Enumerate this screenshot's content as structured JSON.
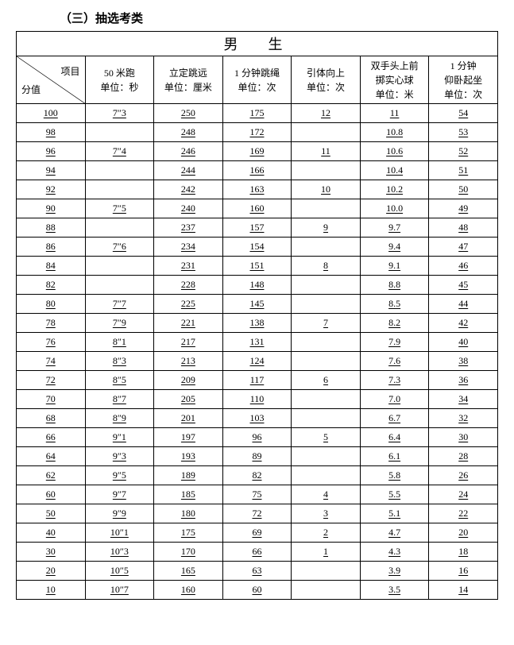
{
  "section_title": "（三）抽选考类",
  "table_title": "男　生",
  "diag_top": "项目",
  "diag_bottom": "分值",
  "columns": [
    {
      "line1": "50 米跑",
      "line2": "单位：秒"
    },
    {
      "line1": "立定跳远",
      "line2": "单位：厘米"
    },
    {
      "line1": "1 分钟跳绳",
      "line2": "单位：次"
    },
    {
      "line1": "引体向上",
      "line2": "单位：次"
    },
    {
      "line1": "双手头上前",
      "line2": "掷实心球",
      "line3": "单位：米"
    },
    {
      "line1": "1 分钟",
      "line2": "仰卧起坐",
      "line3": "单位：次"
    }
  ],
  "rows": [
    {
      "score": "100",
      "c": [
        "7″3",
        "250",
        "175",
        "12",
        "11",
        "54"
      ]
    },
    {
      "score": "98",
      "c": [
        "",
        "248",
        "172",
        "",
        "10.8",
        "53"
      ]
    },
    {
      "score": "96",
      "c": [
        "7″4",
        "246",
        "169",
        "11",
        "10.6",
        "52"
      ]
    },
    {
      "score": "94",
      "c": [
        "",
        "244",
        "166",
        "",
        "10.4",
        "51"
      ]
    },
    {
      "score": "92",
      "c": [
        "",
        "242",
        "163",
        "10",
        "10.2",
        "50"
      ]
    },
    {
      "score": "90",
      "c": [
        "7″5",
        "240",
        "160",
        "",
        "10.0",
        "49"
      ]
    },
    {
      "score": "88",
      "c": [
        "",
        "237",
        "157",
        "9",
        "9.7",
        "48"
      ]
    },
    {
      "score": "86",
      "c": [
        "7″6",
        "234",
        "154",
        "",
        "9.4",
        "47"
      ]
    },
    {
      "score": "84",
      "c": [
        "",
        "231",
        "151",
        "8",
        "9.1",
        "46"
      ]
    },
    {
      "score": "82",
      "c": [
        "",
        "228",
        "148",
        "",
        "8.8",
        "45"
      ]
    },
    {
      "score": "80",
      "c": [
        "7″7",
        "225",
        "145",
        "",
        "8.5",
        "44"
      ]
    },
    {
      "score": "78",
      "c": [
        "7″9",
        "221",
        "138",
        "7",
        "8.2",
        "42"
      ]
    },
    {
      "score": "76",
      "c": [
        "8″1",
        "217",
        "131",
        "",
        "7.9",
        "40"
      ]
    },
    {
      "score": "74",
      "c": [
        "8″3",
        "213",
        "124",
        "",
        "7.6",
        "38"
      ]
    },
    {
      "score": "72",
      "c": [
        "8″5",
        "209",
        "117",
        "6",
        "7.3",
        "36"
      ]
    },
    {
      "score": "70",
      "c": [
        "8″7",
        "205",
        "110",
        "",
        "7.0",
        "34"
      ]
    },
    {
      "score": "68",
      "c": [
        "8″9",
        "201",
        "103",
        "",
        "6.7",
        "32"
      ]
    },
    {
      "score": "66",
      "c": [
        "9″1",
        "197",
        "96",
        "5",
        "6.4",
        "30"
      ]
    },
    {
      "score": "64",
      "c": [
        "9″3",
        "193",
        "89",
        "",
        "6.1",
        "28"
      ]
    },
    {
      "score": "62",
      "c": [
        "9″5",
        "189",
        "82",
        "",
        "5.8",
        "26"
      ]
    },
    {
      "score": "60",
      "c": [
        "9″7",
        "185",
        "75",
        "4",
        "5.5",
        "24"
      ]
    },
    {
      "score": "50",
      "c": [
        "9″9",
        "180",
        "72",
        "3",
        "5.1",
        "22"
      ]
    },
    {
      "score": "40",
      "c": [
        "10″1",
        "175",
        "69",
        "2",
        "4.7",
        "20"
      ]
    },
    {
      "score": "30",
      "c": [
        "10″3",
        "170",
        "66",
        "1",
        "4.3",
        "18"
      ]
    },
    {
      "score": "20",
      "c": [
        "10″5",
        "165",
        "63",
        "",
        "3.9",
        "16"
      ]
    },
    {
      "score": "10",
      "c": [
        "10″7",
        "160",
        "60",
        "",
        "3.5",
        "14"
      ]
    }
  ]
}
